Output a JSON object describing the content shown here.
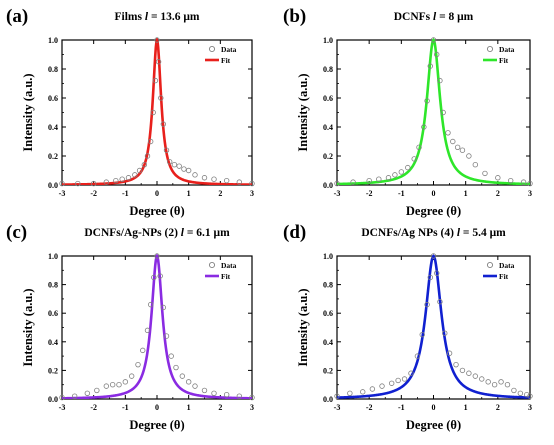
{
  "chart_data": [
    {
      "type": "scatter",
      "panel_label": "(a)",
      "title": "Films",
      "title_suffix": "= 13.6 μm",
      "title_variable": "l",
      "xlabel": "Degree (θ)",
      "ylabel": "Intensity (a.u.)",
      "xlim": [
        -3,
        3
      ],
      "ylim": [
        0,
        1.0
      ],
      "xticks": [
        -3,
        -2,
        -1,
        0,
        1,
        2,
        3
      ],
      "yticks": [
        0.0,
        0.2,
        0.4,
        0.6,
        0.8,
        1.0
      ],
      "grid": false,
      "legend_position": "top-right",
      "fit_color": "#e8201c",
      "gamma": 0.16,
      "series": [
        {
          "name": "Data",
          "marker": "open-circle",
          "x": [
            -3.0,
            -2.5,
            -2.0,
            -1.6,
            -1.3,
            -1.1,
            -0.9,
            -0.7,
            -0.55,
            -0.4,
            -0.3,
            -0.2,
            -0.12,
            -0.05,
            0.0,
            0.05,
            0.12,
            0.2,
            0.3,
            0.4,
            0.55,
            0.7,
            0.85,
            1.0,
            1.2,
            1.5,
            1.8,
            2.2,
            2.6,
            3.0
          ],
          "y": [
            0.01,
            0.01,
            0.01,
            0.02,
            0.03,
            0.04,
            0.05,
            0.07,
            0.1,
            0.14,
            0.2,
            0.3,
            0.5,
            0.72,
            1.0,
            0.85,
            0.6,
            0.42,
            0.24,
            0.16,
            0.14,
            0.13,
            0.11,
            0.1,
            0.07,
            0.05,
            0.04,
            0.03,
            0.02,
            0.01
          ]
        },
        {
          "name": "Fit",
          "line": true
        }
      ]
    },
    {
      "type": "scatter",
      "panel_label": "(b)",
      "title": "DCNFs",
      "title_suffix": "= 8 μm",
      "title_variable": "l",
      "xlabel": "Degree (θ)",
      "ylabel": "Intensity (a.u.)",
      "xlim": [
        -3,
        3
      ],
      "ylim": [
        0,
        1.0
      ],
      "xticks": [
        -3,
        -2,
        -1,
        0,
        1,
        2,
        3
      ],
      "yticks": [
        0.0,
        0.2,
        0.4,
        0.6,
        0.8,
        1.0
      ],
      "grid": false,
      "legend_position": "top-right",
      "fit_color": "#2ee62a",
      "gamma": 0.25,
      "series": [
        {
          "name": "Data",
          "marker": "open-circle",
          "x": [
            -3.0,
            -2.5,
            -2.0,
            -1.7,
            -1.4,
            -1.2,
            -1.0,
            -0.8,
            -0.6,
            -0.45,
            -0.3,
            -0.2,
            -0.1,
            0.0,
            0.1,
            0.2,
            0.3,
            0.45,
            0.6,
            0.75,
            0.9,
            1.1,
            1.3,
            1.6,
            2.0,
            2.4,
            2.8,
            3.0
          ],
          "y": [
            0.01,
            0.02,
            0.03,
            0.04,
            0.05,
            0.07,
            0.09,
            0.12,
            0.18,
            0.26,
            0.4,
            0.58,
            0.82,
            1.0,
            0.9,
            0.72,
            0.5,
            0.36,
            0.3,
            0.26,
            0.24,
            0.2,
            0.14,
            0.08,
            0.05,
            0.03,
            0.02,
            0.01
          ]
        },
        {
          "name": "Fit",
          "line": true
        }
      ]
    },
    {
      "type": "scatter",
      "panel_label": "(c)",
      "title": "DCNFs/Ag-NPs (2)",
      "title_suffix": "= 6.1 μm",
      "title_variable": "l",
      "xlabel": "Degree (θ)",
      "ylabel": "Intensity (a.u.)",
      "xlim": [
        -3,
        3
      ],
      "ylim": [
        0,
        1.0
      ],
      "xticks": [
        -3,
        -2,
        -1,
        0,
        1,
        2,
        3
      ],
      "yticks": [
        0.0,
        0.2,
        0.4,
        0.6,
        0.8,
        1.0
      ],
      "grid": false,
      "legend_position": "top-right",
      "fit_color": "#8a2be2",
      "gamma": 0.21,
      "series": [
        {
          "name": "Data",
          "marker": "open-circle",
          "x": [
            -3.0,
            -2.6,
            -2.2,
            -1.9,
            -1.6,
            -1.4,
            -1.2,
            -1.0,
            -0.8,
            -0.6,
            -0.45,
            -0.3,
            -0.2,
            -0.1,
            0.0,
            0.1,
            0.2,
            0.3,
            0.45,
            0.6,
            0.8,
            1.0,
            1.2,
            1.5,
            1.8,
            2.2,
            2.6,
            3.0
          ],
          "y": [
            0.01,
            0.02,
            0.04,
            0.06,
            0.09,
            0.1,
            0.1,
            0.12,
            0.16,
            0.24,
            0.34,
            0.48,
            0.66,
            0.85,
            1.0,
            0.86,
            0.64,
            0.44,
            0.3,
            0.22,
            0.16,
            0.12,
            0.09,
            0.06,
            0.04,
            0.03,
            0.02,
            0.01
          ]
        },
        {
          "name": "Fit",
          "line": true
        }
      ]
    },
    {
      "type": "scatter",
      "panel_label": "(d)",
      "title": "DCNFs/Ag NPs (4)",
      "title_suffix": "= 5.4 μm",
      "title_variable": "l",
      "xlabel": "Degree (θ)",
      "ylabel": "Intensity (a.u.)",
      "xlim": [
        -3,
        3
      ],
      "ylim": [
        0,
        1.0
      ],
      "xticks": [
        -3,
        -2,
        -1,
        0,
        1,
        2,
        3
      ],
      "yticks": [
        0.0,
        0.2,
        0.4,
        0.6,
        0.8,
        1.0
      ],
      "grid": false,
      "legend_position": "top-right",
      "fit_color": "#1020d0",
      "gamma": 0.3,
      "series": [
        {
          "name": "Data",
          "marker": "open-circle",
          "x": [
            -3.0,
            -2.6,
            -2.2,
            -1.9,
            -1.6,
            -1.3,
            -1.1,
            -0.9,
            -0.7,
            -0.5,
            -0.35,
            -0.2,
            -0.1,
            0.0,
            0.1,
            0.2,
            0.35,
            0.5,
            0.7,
            0.9,
            1.1,
            1.3,
            1.5,
            1.7,
            1.9,
            2.1,
            2.3,
            2.5,
            2.7,
            2.9,
            3.0
          ],
          "y": [
            0.02,
            0.04,
            0.05,
            0.07,
            0.09,
            0.11,
            0.13,
            0.14,
            0.18,
            0.3,
            0.45,
            0.66,
            0.85,
            1.0,
            0.88,
            0.68,
            0.46,
            0.32,
            0.24,
            0.2,
            0.18,
            0.16,
            0.14,
            0.12,
            0.1,
            0.12,
            0.1,
            0.06,
            0.04,
            0.03,
            0.02
          ]
        },
        {
          "name": "Fit",
          "line": true
        }
      ]
    }
  ]
}
